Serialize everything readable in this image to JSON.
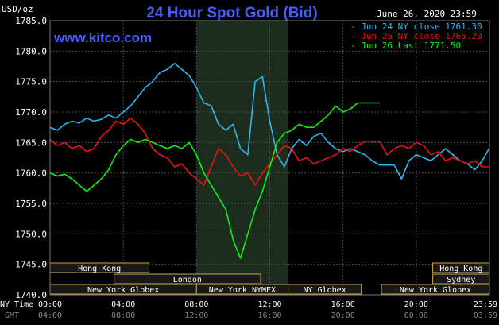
{
  "chart_data": {
    "type": "line",
    "title": "24 Hour Spot Gold (Bid)",
    "watermark": "www.kitco.com",
    "date_label": "June 26, 2020 23:59",
    "ylabel": "USD/oz",
    "ylim": [
      1740,
      1785
    ],
    "yticks": [
      "1785.0",
      "1780.0",
      "1775.0",
      "1770.0",
      "1765.0",
      "1760.0",
      "1755.0",
      "1750.0",
      "1745.0",
      "1740.0"
    ],
    "xlim": [
      0,
      24
    ],
    "x_ticks_ny": [
      "00:00",
      "04:00",
      "08:00",
      "12:00",
      "16:00",
      "20:00",
      "23:59"
    ],
    "x_ticks_gmt": [
      "04:00",
      "08:00",
      "12:00",
      "16:00",
      "20:00",
      "00:00",
      "03:59"
    ],
    "row_label_ny": "NY Time",
    "row_label_gmt": "GMT",
    "comex_session": [
      8,
      13
    ],
    "colors": {
      "jun24": "#33b5ee",
      "jun25": "#ee1111",
      "jun26": "#11ee11",
      "grid": "#4d4d4d",
      "axis_text": "#ffffff",
      "session_shade": "#1d2d1d",
      "market_fill": "#181818",
      "market_border": "#c9a84a",
      "market_text": "#ffffff"
    },
    "legend": [
      {
        "key": "jun24",
        "label": "Jun 24 NY close 1761.30"
      },
      {
        "key": "jun25",
        "label": "Jun 25 NY close 1765.20"
      },
      {
        "key": "jun26",
        "label": "Jun 26 Last 1771.50"
      }
    ],
    "markets": [
      {
        "name": "Hong Kong",
        "row": 0,
        "start": -1,
        "end": 5.4
      },
      {
        "name": "Hong Kong",
        "row": 0,
        "start": 20.9,
        "end": 25
      },
      {
        "name": "London",
        "row": 1,
        "start": 3.5,
        "end": 11.5
      },
      {
        "name": "Sydney",
        "row": 1,
        "start": 20.9,
        "end": 25
      },
      {
        "name": "New York Globex",
        "row": 2,
        "start": -1,
        "end": 8
      },
      {
        "name": "New York NYMEX",
        "row": 2,
        "start": 8,
        "end": 13
      },
      {
        "name": "NY Globex",
        "row": 2,
        "start": 13,
        "end": 17
      },
      {
        "name": "New York Globex",
        "row": 2,
        "start": 18.1,
        "end": 25
      }
    ],
    "series": [
      {
        "name": "Jun 24 NY close 1761.30",
        "key": "jun24",
        "x": [
          0,
          0.4,
          0.8,
          1.2,
          1.6,
          2,
          2.4,
          2.8,
          3.2,
          3.6,
          4,
          4.4,
          4.8,
          5.2,
          5.6,
          6,
          6.4,
          6.8,
          7.2,
          7.6,
          8,
          8.4,
          8.8,
          9.2,
          9.6,
          10,
          10.4,
          10.8,
          11.2,
          11.6,
          12,
          12.4,
          12.8,
          13.2,
          13.6,
          14,
          14.4,
          14.8,
          15.2,
          15.6,
          16,
          16.4,
          16.8,
          17.2,
          17.6,
          18,
          18.4,
          18.8,
          19.2,
          19.6,
          20,
          20.4,
          20.8,
          21.2,
          21.6,
          22,
          22.4,
          22.8,
          23.2,
          23.6,
          23.98
        ],
        "values": [
          1767.5,
          1767,
          1768,
          1768.5,
          1768.2,
          1769,
          1768.5,
          1768.8,
          1769.5,
          1769,
          1770,
          1771,
          1772.5,
          1774,
          1775,
          1776.5,
          1777,
          1778,
          1777,
          1776,
          1774,
          1771.5,
          1771,
          1768,
          1767,
          1768,
          1764,
          1763,
          1775,
          1775.8,
          1768.5,
          1763,
          1761,
          1764,
          1765.5,
          1764.5,
          1766,
          1766.5,
          1765,
          1764,
          1763.5,
          1764,
          1763.5,
          1763,
          1762,
          1761.3,
          1761.3,
          1761.3,
          1759,
          1762,
          1763,
          1762.5,
          1762,
          1763,
          1764,
          1763,
          1762,
          1761.5,
          1760.5,
          1762,
          1764
        ]
      },
      {
        "name": "Jun 25 NY close 1765.20",
        "key": "jun25",
        "x": [
          0,
          0.4,
          0.8,
          1.2,
          1.6,
          2,
          2.4,
          2.8,
          3.2,
          3.6,
          4,
          4.4,
          4.8,
          5.2,
          5.6,
          6,
          6.4,
          6.8,
          7.2,
          7.6,
          8,
          8.4,
          8.8,
          9.2,
          9.6,
          10,
          10.4,
          10.8,
          11.2,
          11.6,
          12,
          12.4,
          12.8,
          13.2,
          13.6,
          14,
          14.4,
          14.8,
          15.2,
          15.6,
          16,
          16.4,
          16.8,
          17.2,
          17.6,
          18,
          18.4,
          18.8,
          19.2,
          19.6,
          20,
          20.4,
          20.8,
          21.2,
          21.6,
          22,
          22.4,
          22.8,
          23.2,
          23.6,
          23.98
        ],
        "values": [
          1765.5,
          1764.5,
          1765,
          1764,
          1764.5,
          1763.5,
          1764,
          1766,
          1767,
          1768.5,
          1768,
          1769,
          1768,
          1766.5,
          1764,
          1763,
          1762.5,
          1761,
          1761.5,
          1760,
          1759,
          1758,
          1761,
          1764,
          1763,
          1761,
          1759.5,
          1760,
          1758,
          1760,
          1761.5,
          1763,
          1764.5,
          1764,
          1762,
          1762.5,
          1761.5,
          1762,
          1762.5,
          1763,
          1764,
          1763.5,
          1764.5,
          1765.2,
          1765.2,
          1765.2,
          1763,
          1764,
          1764.5,
          1764,
          1765,
          1764.5,
          1763,
          1763.5,
          1762,
          1762.5,
          1762,
          1761.5,
          1762,
          1761,
          1761
        ]
      },
      {
        "name": "Jun 26 Last 1771.50",
        "key": "jun26",
        "x": [
          0,
          0.4,
          0.8,
          1.2,
          1.6,
          2,
          2.4,
          2.8,
          3.2,
          3.6,
          4,
          4.4,
          4.8,
          5.2,
          5.6,
          6,
          6.4,
          6.8,
          7.2,
          7.6,
          8,
          8.4,
          8.8,
          9.2,
          9.6,
          10,
          10.4,
          10.8,
          11.2,
          11.6,
          12,
          12.4,
          12.8,
          13.2,
          13.6,
          14,
          14.4,
          14.8,
          15.2,
          15.6,
          16,
          16.4,
          16.8,
          17.2,
          17.6,
          18
        ],
        "values": [
          1760,
          1759.5,
          1759.8,
          1759,
          1758,
          1757,
          1758,
          1759,
          1760.5,
          1763,
          1764.5,
          1765.5,
          1765,
          1765.5,
          1765,
          1764.5,
          1764,
          1764.5,
          1764,
          1765,
          1763,
          1760,
          1758,
          1756,
          1754,
          1749,
          1746,
          1750,
          1754,
          1757,
          1761,
          1765,
          1766.5,
          1767,
          1768,
          1767.5,
          1767.5,
          1768.5,
          1769.5,
          1771,
          1770,
          1770.5,
          1771.5,
          1771.5,
          1771.5,
          1771.5
        ]
      }
    ]
  }
}
